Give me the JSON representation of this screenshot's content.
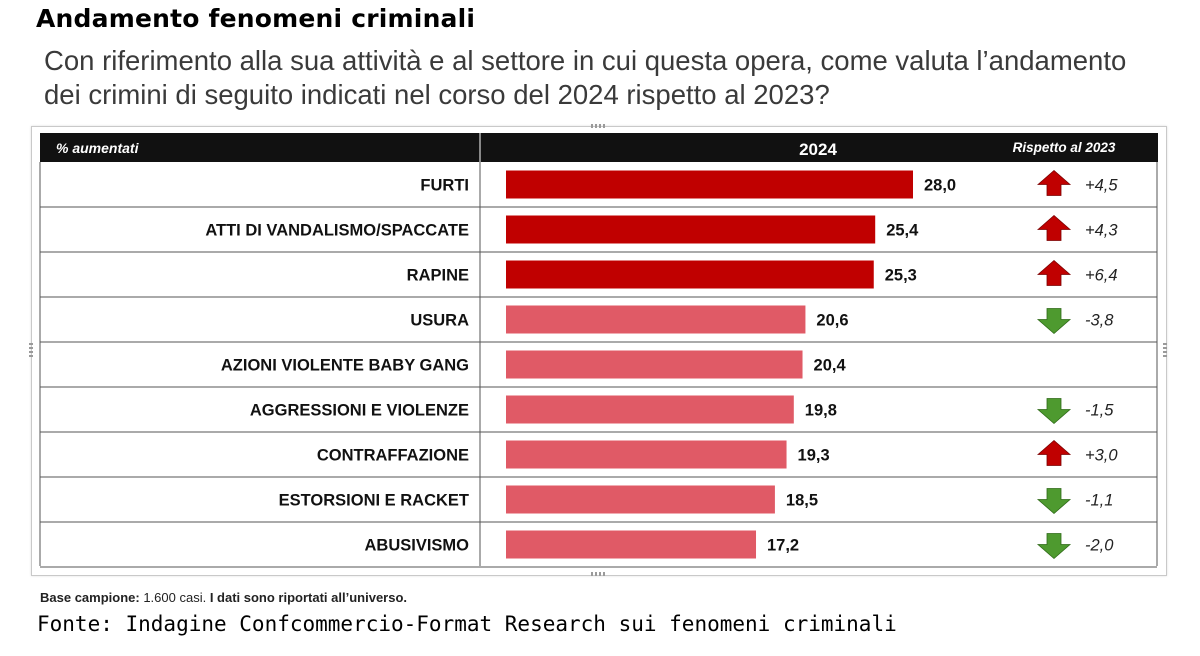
{
  "title": "Andamento fenomeni criminali",
  "question": "Con riferimento alla sua attività e al settore in cui questa opera, come valuta l’andamento dei crimini di seguito indicati nel corso del 2024 rispetto al 2023?",
  "table_header": {
    "label_col": "% aumentati",
    "value_col": "2024",
    "change_col": "Rispetto al 2023"
  },
  "footnote": {
    "prefix": "Base campione: ",
    "count": "1.600 casi.",
    "rest": " I dati sono riportati all’universo."
  },
  "source": "Fonte: Indagine Confcommercio-Format Research sui fenomeni criminali",
  "colors": {
    "bar_dark": "#c00000",
    "bar_light": "#e05a66",
    "header_bg": "#111111",
    "arrow_up": "#c00000",
    "arrow_down": "#4e9a2f"
  },
  "chart_data": {
    "type": "bar",
    "orientation": "horizontal",
    "categories": [
      "FURTI",
      "ATTI DI VANDALISMO/SPACCATE",
      "RAPINE",
      "USURA",
      "AZIONI VIOLENTE BABY GANG",
      "AGGRESSIONI E VIOLENZE",
      "CONTRAFFAZIONE",
      "ESTORSIONI E RACKET",
      "ABUSIVISMO"
    ],
    "values": [
      28.0,
      25.4,
      25.3,
      20.6,
      20.4,
      19.8,
      19.3,
      18.5,
      17.2
    ],
    "value_labels": [
      "28,0",
      "25,4",
      "25,3",
      "20,6",
      "20,4",
      "19,8",
      "19,3",
      "18,5",
      "17,2"
    ],
    "highlight": [
      true,
      true,
      true,
      false,
      false,
      false,
      false,
      false,
      false
    ],
    "change_vs_2023": [
      4.5,
      4.3,
      6.4,
      -3.8,
      null,
      -1.5,
      3.0,
      -1.1,
      -2.0
    ],
    "change_labels": [
      "+4,5",
      "+4,3",
      "+6,4",
      "-3,8",
      "",
      "-1,5",
      "+3,0",
      "-1,1",
      "-2,0"
    ],
    "xlim": [
      0,
      28
    ],
    "grid": false
  }
}
